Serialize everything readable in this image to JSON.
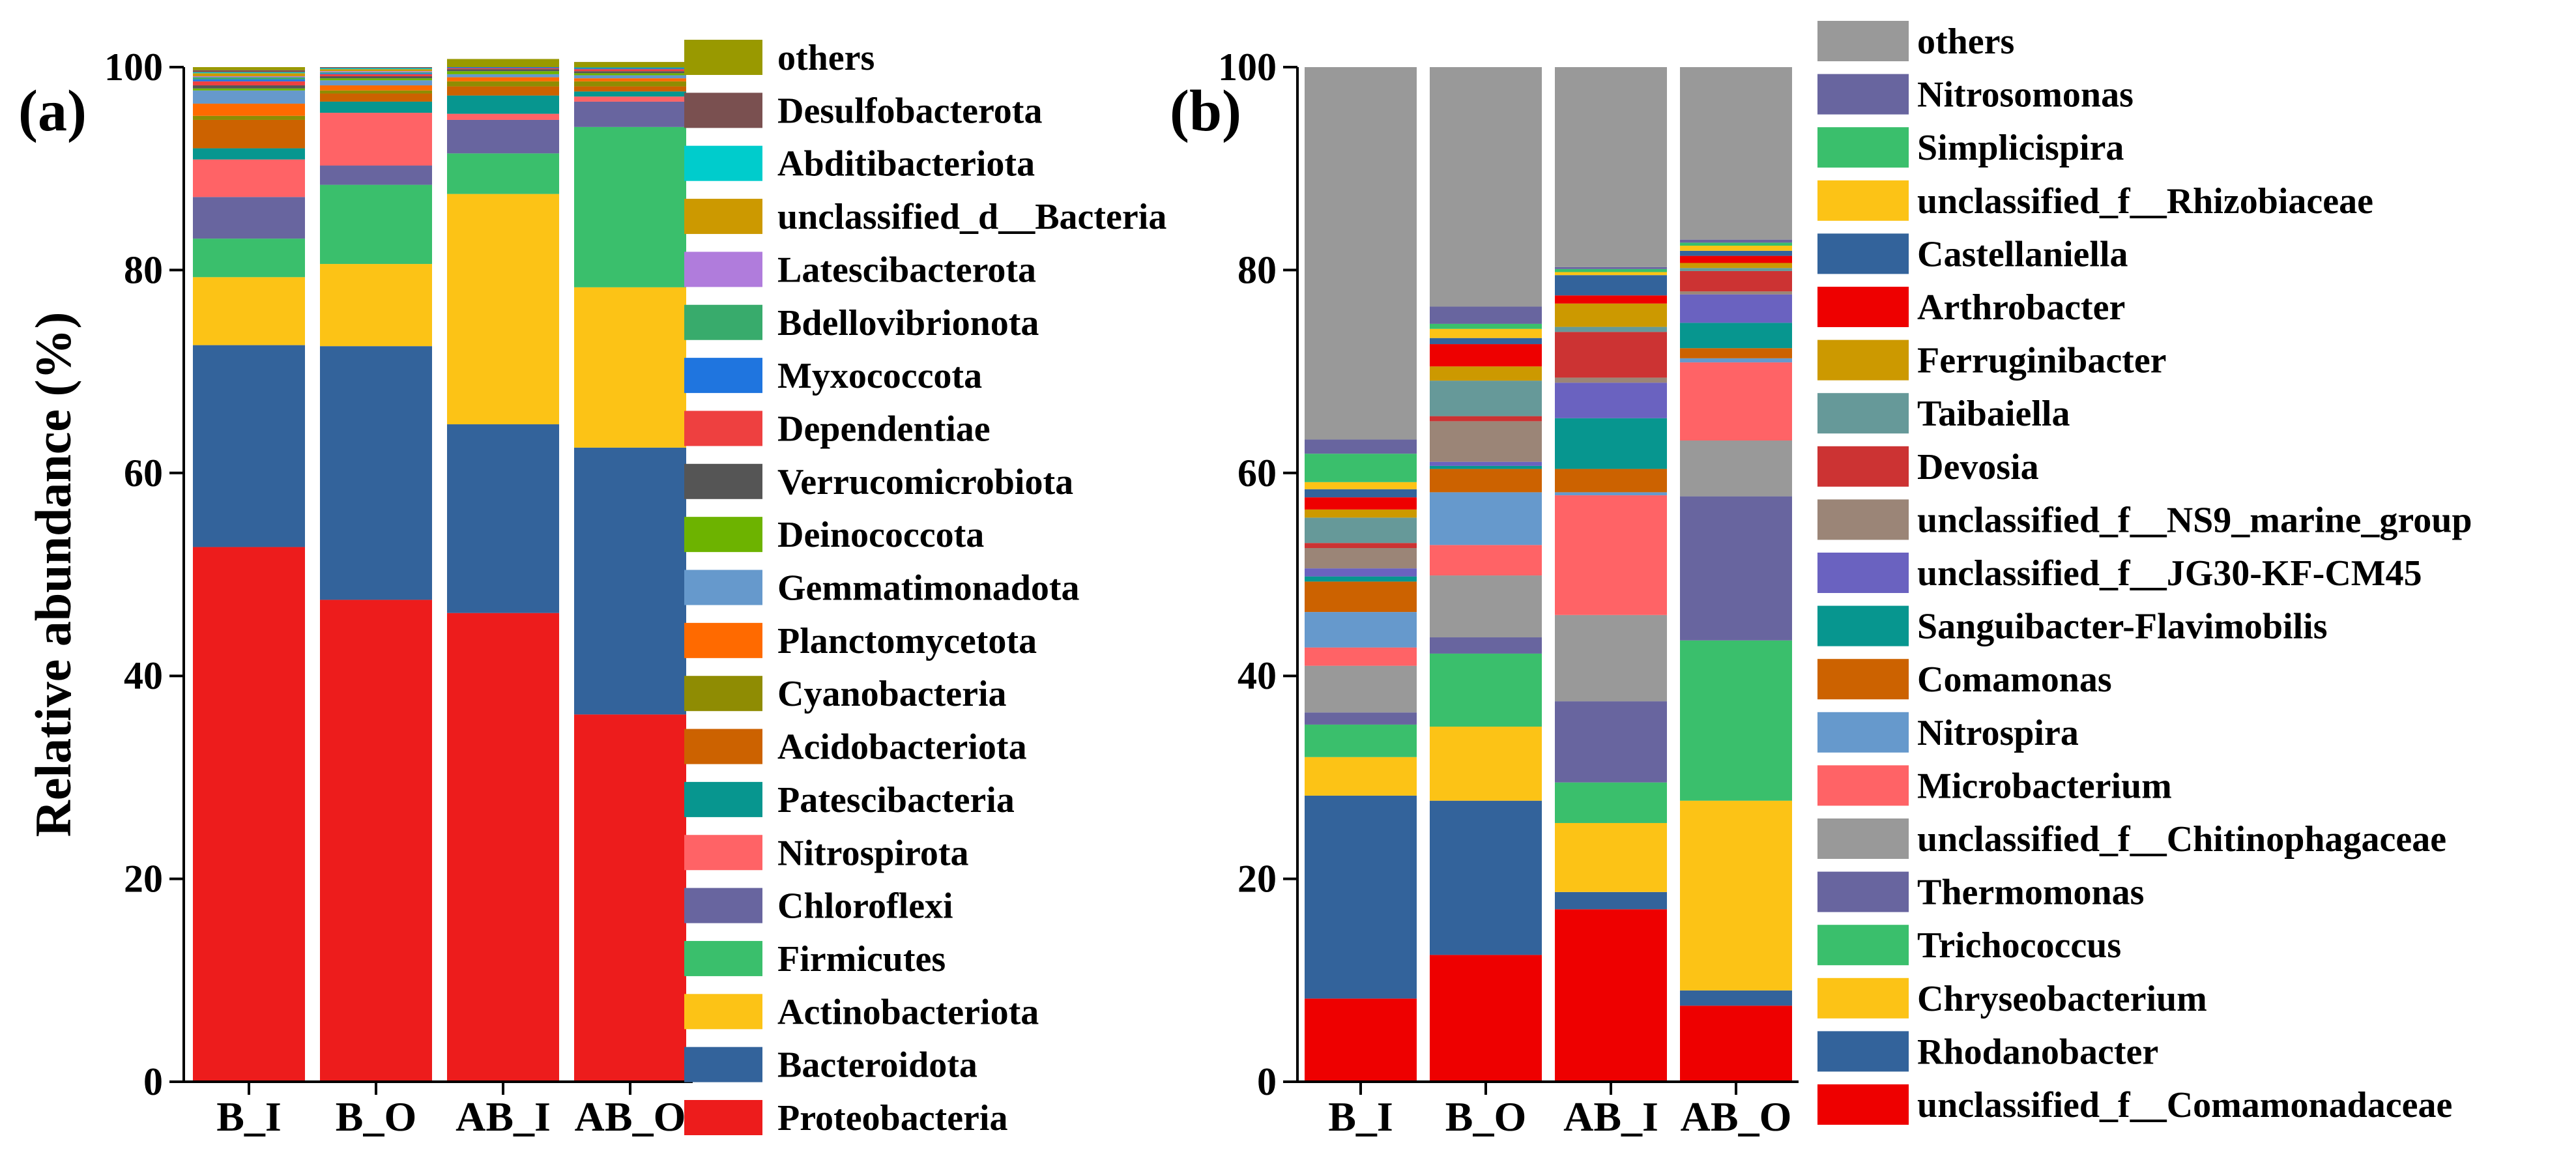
{
  "chart_data": [
    {
      "type": "bar",
      "stacked": true,
      "panel_label": "(a)",
      "title": "",
      "xlabel": "",
      "ylabel": "Relative abundance (%)",
      "ylim": [
        0,
        100
      ],
      "yticks": [
        "0",
        "20",
        "40",
        "60",
        "80",
        "100"
      ],
      "categories": [
        "B_I",
        "B_O",
        "AB_I",
        "AB_O"
      ],
      "legend": "right",
      "series": [
        {
          "name": "Proteobacteria",
          "color": "#ed1c1c",
          "values": [
            52.7,
            47.5,
            46.2,
            36.2
          ]
        },
        {
          "name": "Bacteroidota",
          "color": "#33639b",
          "values": [
            19.9,
            25.0,
            18.6,
            26.3
          ]
        },
        {
          "name": "Actinobacteriota",
          "color": "#fcc316",
          "values": [
            6.7,
            8.1,
            22.7,
            15.8
          ]
        },
        {
          "name": "Firmicutes",
          "color": "#3abf6c",
          "values": [
            3.8,
            7.8,
            4.0,
            15.8
          ]
        },
        {
          "name": "Chloroflexi",
          "color": "#68659f",
          "values": [
            4.1,
            1.9,
            3.3,
            2.5
          ]
        },
        {
          "name": "Nitrospirota",
          "color": "#ff6366",
          "values": [
            3.7,
            5.2,
            0.6,
            0.5
          ]
        },
        {
          "name": "Patescibacteria",
          "color": "#07968f",
          "values": [
            1.1,
            1.1,
            1.8,
            0.5
          ]
        },
        {
          "name": "Acidobacteriota",
          "color": "#cc6200",
          "values": [
            2.8,
            0.8,
            0.9,
            0.5
          ]
        },
        {
          "name": "Cyanobacteria",
          "color": "#8f8c03",
          "values": [
            0.4,
            0.3,
            0.5,
            0.5
          ]
        },
        {
          "name": "Planctomycetota",
          "color": "#ff6a00",
          "values": [
            1.2,
            0.5,
            0.4,
            0.3
          ]
        },
        {
          "name": "Gemmatimonadota",
          "color": "#6699cc",
          "values": [
            1.3,
            0.5,
            0.3,
            0.3
          ]
        },
        {
          "name": "Deinococcota",
          "color": "#6db300",
          "values": [
            0.2,
            0.2,
            0.3,
            0.2
          ]
        },
        {
          "name": "Verrucomicrobiota",
          "color": "#555555",
          "values": [
            0.3,
            0.2,
            0.2,
            0.2
          ]
        },
        {
          "name": "Dependentiae",
          "color": "#ee4040",
          "values": [
            0.4,
            0.2,
            0.1,
            0.2
          ]
        },
        {
          "name": "Myxococcota",
          "color": "#1f75df",
          "values": [
            0.2,
            0.1,
            0.1,
            0.1
          ]
        },
        {
          "name": "Bdellovibrionota",
          "color": "#38ab6c",
          "values": [
            0.2,
            0.1,
            0.1,
            0.1
          ]
        },
        {
          "name": "Latescibacterota",
          "color": "#b07cdc",
          "values": [
            0.1,
            0.1,
            0.1,
            0.1
          ]
        },
        {
          "name": "unclassified_d__Bacteria",
          "color": "#cc9900",
          "values": [
            0.3,
            0.2,
            0.4,
            0.2
          ]
        },
        {
          "name": "Abditibacteriota",
          "color": "#00cccc",
          "values": [
            0.1,
            0.1,
            0.1,
            0.1
          ]
        },
        {
          "name": "Desulfobacterota",
          "color": "#7a5050",
          "values": [
            0.2,
            0.1,
            0.1,
            0.1
          ]
        },
        {
          "name": "others",
          "color": "#999900",
          "values": [
            0.5,
            0.3,
            0.3,
            0.5
          ]
        }
      ]
    },
    {
      "type": "bar",
      "stacked": true,
      "panel_label": "(b)",
      "title": "",
      "xlabel": "",
      "ylabel": "",
      "ylim": [
        0,
        100
      ],
      "yticks": [
        "0",
        "20",
        "40",
        "60",
        "80",
        "100"
      ],
      "categories": [
        "B_I",
        "B_O",
        "AB_I",
        "AB_O"
      ],
      "legend": "right",
      "series": [
        {
          "name": "unclassified_f__Comamonadaceae",
          "color": "#ee0000",
          "values": [
            8.2,
            12.5,
            17.0,
            7.5
          ]
        },
        {
          "name": "Rhodanobacter",
          "color": "#33639b",
          "values": [
            20.0,
            15.2,
            1.7,
            1.5
          ]
        },
        {
          "name": "Chryseobacterium",
          "color": "#fcc316",
          "values": [
            3.8,
            7.3,
            6.8,
            18.7
          ]
        },
        {
          "name": "Trichococcus",
          "color": "#3abf6c",
          "values": [
            3.2,
            7.2,
            4.0,
            15.8
          ]
        },
        {
          "name": "Thermomonas",
          "color": "#68659f",
          "values": [
            1.2,
            1.6,
            8.0,
            14.2
          ]
        },
        {
          "name": "unclassified_f__Chitinophagaceae",
          "color": "#999999",
          "values": [
            4.6,
            6.1,
            8.5,
            5.5
          ]
        },
        {
          "name": "Microbacterium",
          "color": "#ff6366",
          "values": [
            1.8,
            3.0,
            11.8,
            7.7
          ]
        },
        {
          "name": "Nitrospira",
          "color": "#6699cc",
          "values": [
            3.5,
            5.2,
            0.3,
            0.4
          ]
        },
        {
          "name": "Comamonas",
          "color": "#cc6200",
          "values": [
            3.0,
            2.3,
            2.3,
            1.0
          ]
        },
        {
          "name": "Sanguibacter-Flavimobilis",
          "color": "#07968f",
          "values": [
            0.5,
            0.3,
            5.0,
            2.5
          ]
        },
        {
          "name": "unclassified_f__JG30-KF-CM45",
          "color": "#6a62c0",
          "values": [
            0.8,
            0.4,
            3.5,
            2.8
          ]
        },
        {
          "name": "unclassified_f__NS9_marine_group",
          "color": "#9b8577",
          "values": [
            2.0,
            4.0,
            0.5,
            0.3
          ]
        },
        {
          "name": "Devosia",
          "color": "#cc3333",
          "values": [
            0.5,
            0.5,
            4.5,
            2.0
          ]
        },
        {
          "name": "Taibaiella",
          "color": "#669999",
          "values": [
            2.5,
            3.5,
            0.5,
            0.3
          ]
        },
        {
          "name": "Ferruginibacter",
          "color": "#cc9900",
          "values": [
            0.8,
            1.4,
            2.3,
            0.5
          ]
        },
        {
          "name": "Arthrobacter",
          "color": "#ee0000",
          "values": [
            1.2,
            2.2,
            0.8,
            0.7
          ]
        },
        {
          "name": "Castellaniella",
          "color": "#33639b",
          "values": [
            0.8,
            0.6,
            2.0,
            0.5
          ]
        },
        {
          "name": "unclassified_f__Rhizobiaceae",
          "color": "#fcc316",
          "values": [
            0.7,
            0.9,
            0.3,
            0.5
          ]
        },
        {
          "name": "Simplicispira",
          "color": "#3abf6c",
          "values": [
            2.8,
            0.5,
            0.3,
            0.3
          ]
        },
        {
          "name": "Nitrosomonas",
          "color": "#68659f",
          "values": [
            1.4,
            1.7,
            0.2,
            0.3
          ]
        },
        {
          "name": "others",
          "color": "#999999",
          "values": [
            35.2,
            22.6,
            20.0,
            17.0
          ]
        }
      ]
    }
  ]
}
